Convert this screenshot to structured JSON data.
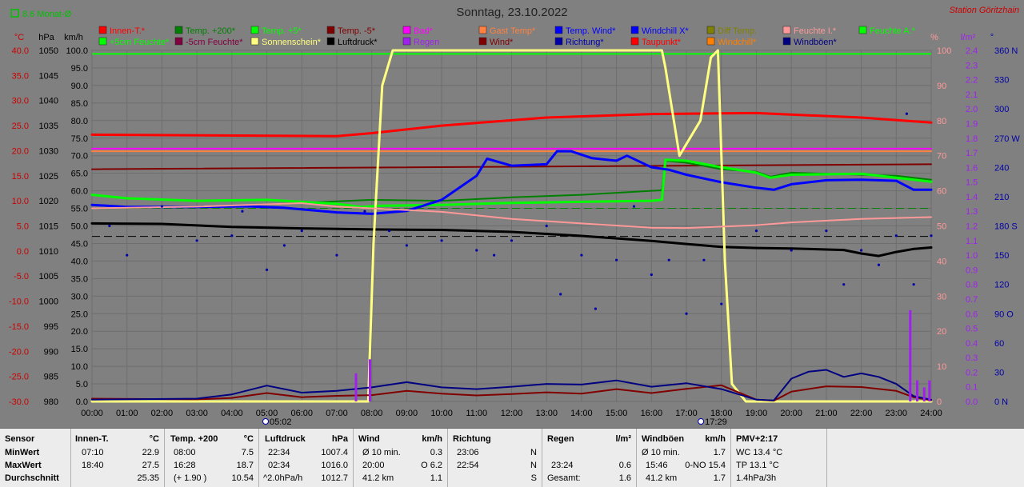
{
  "chart_data": {
    "type": "line",
    "title": "Sonntag, 23.10.2022",
    "station": "Station Göritzhain",
    "monthly_avg_label": "8.6 Monat-Ø",
    "axes_left": [
      {
        "unit": "°C",
        "ticks": [
          "40.0",
          "35.0",
          "30.0",
          "25.0",
          "20.0",
          "15.0",
          "10.0",
          "5.0",
          "0.0",
          "-5.0",
          "-10.0",
          "-15.0",
          "-20.0",
          "-25.0",
          "-30.0"
        ],
        "range": [
          -30,
          40
        ],
        "color": "#cc0000"
      },
      {
        "unit": "hPa",
        "ticks": [
          "1050",
          "1045",
          "1040",
          "1035",
          "1030",
          "1025",
          "1020",
          "1015",
          "1010",
          "1005",
          "1000",
          "995",
          "990",
          "985",
          "980"
        ],
        "range": [
          980,
          1050
        ],
        "color": "#000000"
      },
      {
        "unit": "km/h",
        "ticks": [
          "100.0",
          "95.0",
          "90.0",
          "85.0",
          "80.0",
          "75.0",
          "70.0",
          "65.0",
          "60.0",
          "55.0",
          "50.0",
          "45.0",
          "40.0",
          "35.0",
          "30.0",
          "25.0",
          "20.0",
          "15.0",
          "10.0",
          "5.0",
          "0.0"
        ],
        "range": [
          0,
          100
        ],
        "color": "#000000"
      }
    ],
    "axes_right": [
      {
        "unit": "%",
        "ticks": [
          "100",
          "90",
          "80",
          "70",
          "60",
          "50",
          "40",
          "30",
          "20",
          "10",
          "0"
        ],
        "range": [
          0,
          100
        ],
        "color": "#ff9999"
      },
      {
        "unit": "l/m²",
        "ticks": [
          "2.4",
          "2.3",
          "2.2",
          "2.1",
          "2.0",
          "1.9",
          "1.8",
          "1.7",
          "1.6",
          "1.5",
          "1.4",
          "1.3",
          "1.2",
          "1.1",
          "1.0",
          "0.9",
          "0.8",
          "0.7",
          "0.6",
          "0.5",
          "0.4",
          "0.3",
          "0.2",
          "0.1",
          "0.0"
        ],
        "range": [
          0,
          2.5
        ],
        "color": "#a020f0"
      },
      {
        "unit": "°",
        "ticks": [
          "360 N",
          "330",
          "300",
          "270 W",
          "240",
          "210",
          "180 S",
          "150",
          "120",
          "90 O",
          "60",
          "30",
          "0 N"
        ],
        "range": [
          0,
          360
        ],
        "color": "#0000aa"
      }
    ],
    "x_ticks": [
      "00:00",
      "01:00",
      "02:00",
      "03:00",
      "04:00",
      "05:00",
      "06:00",
      "07:00",
      "08:00",
      "09:00",
      "10:00",
      "11:00",
      "12:00",
      "13:00",
      "14:00",
      "15:00",
      "16:00",
      "17:00",
      "18:00",
      "19:00",
      "20:00",
      "21:00",
      "22:00",
      "23:00",
      "24:00"
    ],
    "sunrise": "05:02",
    "sunset": "17:29",
    "legend": [
      {
        "name": "Innen-T.*",
        "color": "#ff0000"
      },
      {
        "name": "Temp. +200*",
        "color": "#008000"
      },
      {
        "name": "Temp. +5*",
        "color": "#00ff00"
      },
      {
        "name": "Temp. -5*",
        "color": "#800000"
      },
      {
        "name": "Bad*",
        "color": "#ff00ff"
      },
      {
        "name": "Gast Temp*",
        "color": "#ff8040"
      },
      {
        "name": "Temp. Wind*",
        "color": "#0000ff"
      },
      {
        "name": "Windchill X*",
        "color": "#0000ff"
      },
      {
        "name": "Diff Temp.",
        "color": "#808000"
      },
      {
        "name": "Feuchte I.*",
        "color": "#ff9999"
      },
      {
        "name": "Feuchte A.*",
        "color": "#00ff00"
      },
      {
        "name": "+5cm Feuchte*",
        "color": "#00ff00"
      },
      {
        "name": "-5cm Feuchte*",
        "color": "#800040"
      },
      {
        "name": "Sonnenschein*",
        "color": "#ffff80"
      },
      {
        "name": "Luftdruck*",
        "color": "#000000"
      },
      {
        "name": "Regen",
        "color": "#a020f0"
      },
      {
        "name": "Wind*",
        "color": "#800000"
      },
      {
        "name": "Richtung*",
        "color": "#0000aa"
      },
      {
        "name": "Taupunkt*",
        "color": "#ff0000"
      },
      {
        "name": "Windchill*",
        "color": "#ff8000"
      },
      {
        "name": "Windböen*",
        "color": "#000080"
      }
    ],
    "series": [
      {
        "name": "Innen-T.*",
        "color": "#ff0000",
        "x": [
          0,
          7,
          8,
          10,
          13,
          16,
          19,
          22,
          24
        ],
        "y": [
          23.2,
          22.9,
          23.5,
          25.0,
          26.6,
          27.3,
          27.5,
          26.6,
          25.6
        ]
      },
      {
        "name": "Bad*",
        "color": "#ff00ff",
        "x": [
          0,
          24
        ],
        "y": [
          20.4,
          20.4
        ]
      },
      {
        "name": "Gast Temp*",
        "color": "#ff8040",
        "x": [
          0,
          24
        ],
        "y": [
          19.9,
          19.9
        ]
      },
      {
        "name": "Temp. -5*",
        "color": "#800000",
        "x": [
          0,
          24
        ],
        "y": [
          16.3,
          17.3
        ]
      },
      {
        "name": "Temp. +200*",
        "color": "#008000",
        "x": [
          0,
          2,
          4,
          6,
          8,
          10,
          12,
          14,
          16,
          16.3,
          16.4,
          17,
          18,
          19,
          19.4,
          20,
          22,
          23,
          24
        ],
        "y": [
          8.5,
          8.7,
          9.0,
          9.6,
          10.2,
          10.0,
          10.7,
          11.2,
          12.0,
          12.1,
          18.0,
          17.6,
          16.3,
          15.8,
          14.8,
          15.6,
          15.2,
          15.0,
          14.2
        ]
      },
      {
        "name": "Temp. +5*",
        "color": "#00ff00",
        "x": [
          0,
          1,
          3,
          5,
          7,
          7.7,
          8.2,
          10,
          12,
          14,
          16,
          16.3,
          16.4,
          17,
          18,
          19,
          19.4,
          20,
          22,
          23,
          24
        ],
        "y": [
          11.2,
          10.5,
          10.0,
          10.2,
          9.4,
          8.8,
          9.0,
          9.2,
          9.6,
          9.8,
          10.0,
          10.2,
          18.2,
          18.0,
          16.7,
          15.6,
          14.6,
          15.2,
          15.4,
          14.6,
          13.8
        ]
      },
      {
        "name": "Temp. Wind*",
        "color": "#0000ff",
        "x": [
          0,
          1,
          3,
          4.5,
          5.5,
          7,
          8,
          9,
          10,
          11,
          11.3,
          12,
          13,
          13.3,
          13.7,
          14.3,
          15,
          15.3,
          16,
          16.5,
          17,
          18,
          19,
          19.5,
          20,
          21,
          22,
          23,
          23.5,
          24
        ],
        "y": [
          9.2,
          8.8,
          8.8,
          8.9,
          8.6,
          7.7,
          7.4,
          8.0,
          10.2,
          15.0,
          18.4,
          17.0,
          17.3,
          19.9,
          19.9,
          18.5,
          18.0,
          19.0,
          16.7,
          16.2,
          15.2,
          13.7,
          12.6,
          12.2,
          13.3,
          14.1,
          14.2,
          14.0,
          12.2,
          12.2
        ]
      },
      {
        "name": "Luftdruck*",
        "color": "#000000",
        "x": [
          0,
          2,
          4,
          6,
          8,
          10,
          12,
          14,
          16,
          17,
          18,
          19,
          20,
          21,
          21.5,
          22,
          22.5,
          23,
          23.5,
          24
        ],
        "y": [
          1015.5,
          1015.4,
          1014.8,
          1014.5,
          1014.3,
          1014.2,
          1013.8,
          1013.0,
          1012.0,
          1011.4,
          1010.8,
          1010.6,
          1010.5,
          1010.3,
          1010.2,
          1009.5,
          1009.0,
          1009.8,
          1010.4,
          1010.7
        ]
      },
      {
        "name": "Sonnenschein*",
        "color": "#ffff80",
        "x": [
          0,
          7.9,
          8.05,
          8.3,
          8.6,
          16.3,
          16.4,
          16.8,
          17.4,
          17.7,
          17.9,
          18.1,
          18.3,
          18.7,
          24
        ],
        "y": [
          0,
          0,
          45,
          90,
          100,
          100,
          95,
          70,
          80,
          98,
          100,
          40,
          5,
          0,
          0
        ]
      },
      {
        "name": "Feuchte I.*",
        "color": "#ff9999",
        "x": [
          0,
          3,
          6,
          7,
          8,
          10,
          12,
          14,
          16,
          17,
          18,
          19,
          20,
          22,
          24
        ],
        "y": [
          55.0,
          55.5,
          56.5,
          55.5,
          55.0,
          54.0,
          52.0,
          50.7,
          49.5,
          49.4,
          49.8,
          50.2,
          51.0,
          52.0,
          52.5
        ]
      },
      {
        "name": "Wind*",
        "color": "#800000",
        "x": [
          0,
          3,
          4,
          5,
          6,
          7,
          8,
          9,
          10,
          11,
          12,
          13,
          14,
          15,
          16,
          17,
          18,
          19,
          19.5,
          20,
          21,
          22,
          23,
          23.5,
          24
        ],
        "y": [
          0.8,
          0.6,
          1.0,
          2.4,
          1.2,
          1.6,
          1.8,
          3.0,
          2.2,
          1.7,
          2.1,
          2.6,
          2.2,
          3.5,
          2.4,
          3.6,
          4.6,
          0.5,
          0.2,
          2.8,
          4.3,
          4.1,
          3.0,
          1.2,
          0.3
        ]
      },
      {
        "name": "Windböen*",
        "color": "#000080",
        "x": [
          0,
          3,
          4,
          5,
          6,
          7,
          8,
          9,
          10,
          11,
          12,
          13,
          14,
          15,
          16,
          17,
          18,
          19,
          19.5,
          20,
          20.5,
          21,
          21.5,
          22,
          22.5,
          23,
          23.5,
          24
        ],
        "y": [
          0.5,
          0.8,
          2.0,
          4.5,
          2.5,
          3.0,
          4.0,
          5.5,
          4.0,
          3.5,
          4.2,
          5.0,
          4.8,
          6.0,
          4.2,
          5.2,
          3.5,
          0.5,
          0.3,
          6.5,
          8.5,
          9.0,
          7.0,
          8.0,
          7.0,
          5.0,
          1.5,
          0.5
        ]
      },
      {
        "name": "Richtung*",
        "color": "#0000aa",
        "x": [
          0.5,
          1,
          2,
          3,
          4,
          4.3,
          5,
          5.5,
          6,
          7,
          7.8,
          8.5,
          9,
          10,
          11,
          11.5,
          12,
          13,
          13.4,
          14,
          14.4,
          15,
          15.5,
          16,
          16.5,
          17,
          17.5,
          18,
          19,
          20,
          21,
          21.5,
          22,
          22.5,
          23,
          23.3,
          23.5,
          24
        ],
        "y": [
          180,
          150,
          200,
          165,
          170,
          195,
          135,
          160,
          175,
          150,
          195,
          175,
          160,
          165,
          155,
          150,
          165,
          180,
          110,
          150,
          95,
          145,
          200,
          130,
          145,
          90,
          145,
          100,
          175,
          155,
          175,
          120,
          155,
          140,
          170,
          295,
          120,
          170
        ]
      },
      {
        "name": "Regen",
        "color": "#a020f0",
        "bars_x": [
          7.55,
          7.95,
          23.4,
          23.6,
          23.8,
          23.95
        ],
        "bars_y": [
          0.2,
          0.3,
          0.65,
          0.15,
          0.1,
          0.15
        ]
      }
    ]
  },
  "stats": {
    "headers": [
      "Sensor",
      "Innen-T.",
      "°C",
      "Temp. +200",
      "°C",
      "Luftdruck",
      "hPa",
      "Wind",
      "km/h",
      "Richtung",
      "Regen",
      "l/m²",
      "Windböen",
      "km/h",
      "PMV+2:17"
    ],
    "row_labels": [
      "MinWert",
      "MaxWert",
      "Durchschnitt"
    ],
    "innen": {
      "min_time": "07:10",
      "min_val": "22.9",
      "max_time": "18:40",
      "max_val": "27.5",
      "avg": "25.35"
    },
    "temp200": {
      "min_time": "08:00",
      "min_val": "7.5",
      "max_time": "16:28",
      "max_val": "18.7",
      "avg_note": "(+ 1.90 )",
      "avg": "10.54"
    },
    "luftdruck": {
      "min_time": "22:34",
      "min_val": "1007.4",
      "max_time": "02:34",
      "max_val": "1016.0",
      "avg_note": "^2.0hPa/h",
      "avg": "1012.7"
    },
    "wind": {
      "r1_a": "Ø 10 min.",
      "r1_v": "0.3",
      "r2_a": "20:00",
      "r2_v": "O 6.2",
      "r3_a": "41.2 km",
      "r3_v": "1.1"
    },
    "richtung": {
      "r1_a": "23:06",
      "r1_v": "N",
      "r2_a": "22:54",
      "r2_v": "N",
      "r3_v": "S"
    },
    "regen": {
      "r2_a": "23:24",
      "r2_v": "0.6",
      "r3_a": "Gesamt:",
      "r3_v": "1.6"
    },
    "boeen": {
      "r1_a": "Ø 10 min.",
      "r1_v": "1.7",
      "r2_a": "15:46",
      "r2_v": "0-NO 15.4",
      "r3_a": "41.2 km",
      "r3_v": "1.7"
    },
    "pmv": {
      "r1": "WC 13.4 °C",
      "r2": "TP 13.1 °C",
      "r3": "1.4hPa/3h"
    }
  }
}
